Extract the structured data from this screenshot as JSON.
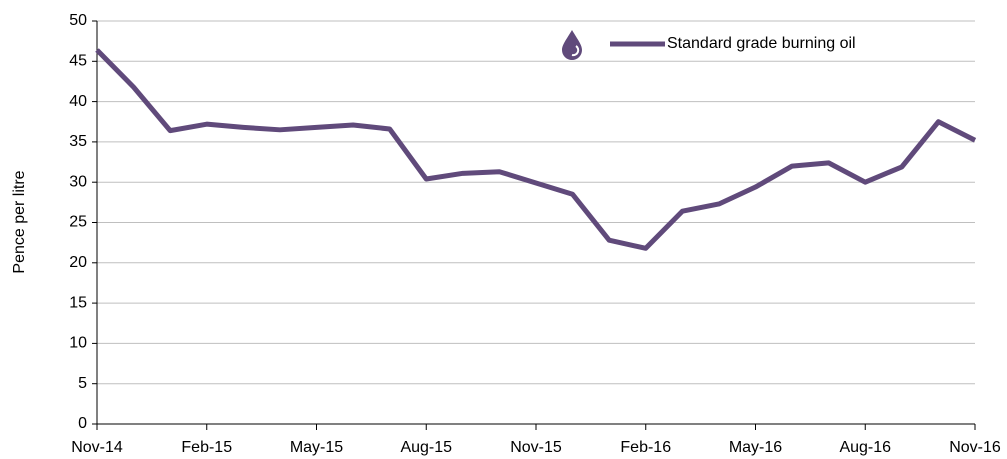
{
  "chart_data": {
    "type": "line",
    "ylabel": "Pence per litre",
    "categories": [
      "Nov-14",
      null,
      null,
      "Feb-15",
      null,
      null,
      "May-15",
      null,
      null,
      "Aug-15",
      null,
      null,
      "Nov-15",
      null,
      null,
      "Feb-16",
      null,
      null,
      "May-16",
      null,
      null,
      "Aug-16",
      null,
      null,
      "Nov-16"
    ],
    "series": [
      {
        "name": "Standard grade burning oil",
        "color": "#604a7b",
        "values": [
          46.4,
          41.8,
          36.4,
          37.2,
          36.8,
          36.5,
          36.8,
          37.1,
          36.6,
          30.4,
          31.1,
          31.3,
          29.9,
          28.5,
          22.8,
          21.8,
          26.4,
          27.3,
          29.4,
          32.0,
          32.4,
          30.0,
          31.9,
          37.5,
          35.2
        ]
      }
    ],
    "ylim": [
      0,
      50
    ],
    "yticks": [
      0,
      5,
      10,
      15,
      20,
      25,
      30,
      35,
      40,
      45,
      50
    ],
    "grid": true,
    "legend": "top-right"
  }
}
